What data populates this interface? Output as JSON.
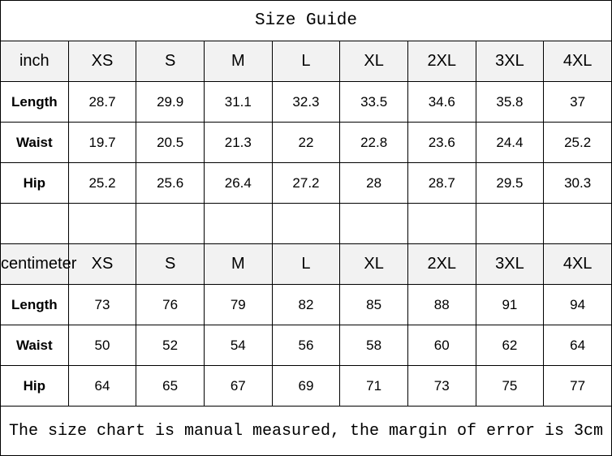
{
  "title": "Size Guide",
  "sizes": [
    "XS",
    "S",
    "M",
    "L",
    "XL",
    "2XL",
    "3XL",
    "4XL"
  ],
  "inch": {
    "unit": "inch",
    "rows": [
      {
        "label": "Length",
        "values": [
          "28.7",
          "29.9",
          "31.1",
          "32.3",
          "33.5",
          "34.6",
          "35.8",
          "37"
        ]
      },
      {
        "label": "Waist",
        "values": [
          "19.7",
          "20.5",
          "21.3",
          "22",
          "22.8",
          "23.6",
          "24.4",
          "25.2"
        ]
      },
      {
        "label": "Hip",
        "values": [
          "25.2",
          "25.6",
          "26.4",
          "27.2",
          "28",
          "28.7",
          "29.5",
          "30.3"
        ]
      }
    ]
  },
  "cm": {
    "unit": "centimeter",
    "rows": [
      {
        "label": "Length",
        "values": [
          "73",
          "76",
          "79",
          "82",
          "85",
          "88",
          "91",
          "94"
        ]
      },
      {
        "label": "Waist",
        "values": [
          "50",
          "52",
          "54",
          "56",
          "58",
          "60",
          "62",
          "64"
        ]
      },
      {
        "label": "Hip",
        "values": [
          "64",
          "65",
          "67",
          "69",
          "71",
          "73",
          "75",
          "77"
        ]
      }
    ]
  },
  "footer": "The size chart is manual measured, the margin of error is 3cm",
  "colors": {
    "header_bg": "#f2f2f2",
    "border": "#000000"
  }
}
